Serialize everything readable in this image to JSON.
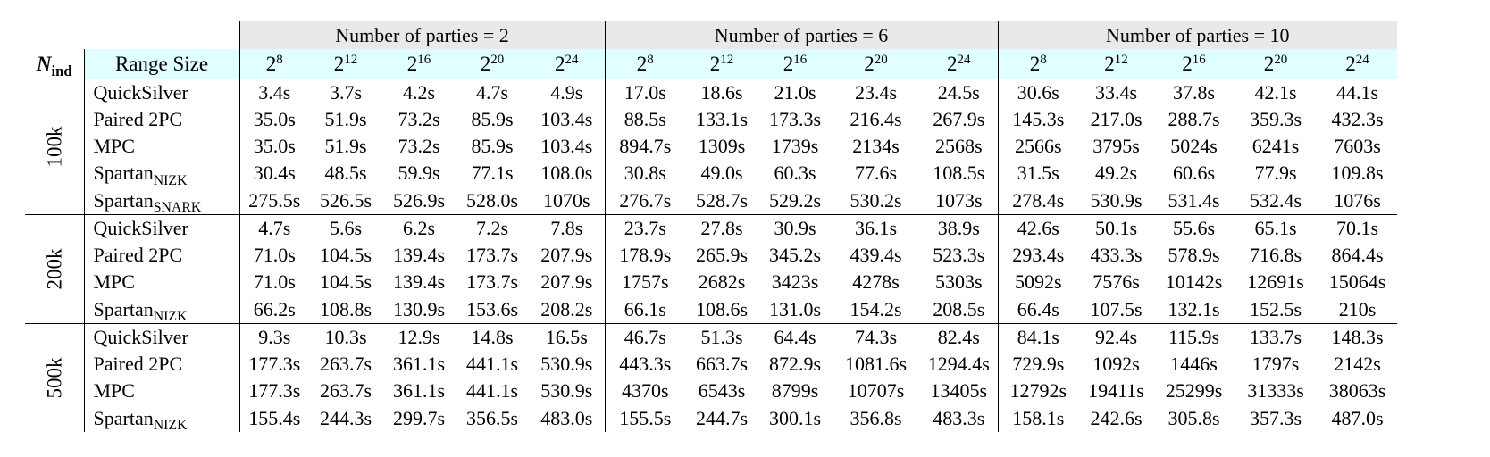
{
  "header": {
    "nind_symbol": "N",
    "nind_subscript": "ind",
    "range_label": "Range Size",
    "party_groups": [
      "Number of parties = 2",
      "Number of parties = 6",
      "Number of parties = 10"
    ],
    "range_sizes": [
      {
        "base": "2",
        "exp": "8"
      },
      {
        "base": "2",
        "exp": "12"
      },
      {
        "base": "2",
        "exp": "16"
      },
      {
        "base": "2",
        "exp": "20"
      },
      {
        "base": "2",
        "exp": "24"
      }
    ]
  },
  "groups": [
    {
      "nind": "100k",
      "rows": [
        {
          "name": "QuickSilver",
          "sub": "",
          "bold": true,
          "values": [
            "3.4s",
            "3.7s",
            "4.2s",
            "4.7s",
            "4.9s",
            "17.0s",
            "18.6s",
            "21.0s",
            "23.4s",
            "24.5s",
            "30.6s",
            "33.4s",
            "37.8s",
            "42.1s",
            "44.1s"
          ]
        },
        {
          "name": "Paired 2PC",
          "sub": "",
          "bold": false,
          "values": [
            "35.0s",
            "51.9s",
            "73.2s",
            "85.9s",
            "103.4s",
            "88.5s",
            "133.1s",
            "173.3s",
            "216.4s",
            "267.9s",
            "145.3s",
            "217.0s",
            "288.7s",
            "359.3s",
            "432.3s"
          ]
        },
        {
          "name": "MPC",
          "sub": "",
          "bold": false,
          "values": [
            "35.0s",
            "51.9s",
            "73.2s",
            "85.9s",
            "103.4s",
            "894.7s",
            "1309s",
            "1739s",
            "2134s",
            "2568s",
            "2566s",
            "3795s",
            "5024s",
            "6241s",
            "7603s"
          ]
        },
        {
          "name": "Spartan",
          "sub": "NIZK",
          "bold": false,
          "values": [
            "30.4s",
            "48.5s",
            "59.9s",
            "77.1s",
            "108.0s",
            "30.8s",
            "49.0s",
            "60.3s",
            "77.6s",
            "108.5s",
            "31.5s",
            "49.2s",
            "60.6s",
            "77.9s",
            "109.8s"
          ]
        },
        {
          "name": "Spartan",
          "sub": "SNARK",
          "bold": false,
          "values": [
            "275.5s",
            "526.5s",
            "526.9s",
            "528.0s",
            "1070s",
            "276.7s",
            "528.7s",
            "529.2s",
            "530.2s",
            "1073s",
            "278.4s",
            "530.9s",
            "531.4s",
            "532.4s",
            "1076s"
          ]
        }
      ]
    },
    {
      "nind": "200k",
      "rows": [
        {
          "name": "QuickSilver",
          "sub": "",
          "bold": true,
          "values": [
            "4.7s",
            "5.6s",
            "6.2s",
            "7.2s",
            "7.8s",
            "23.7s",
            "27.8s",
            "30.9s",
            "36.1s",
            "38.9s",
            "42.6s",
            "50.1s",
            "55.6s",
            "65.1s",
            "70.1s"
          ]
        },
        {
          "name": "Paired 2PC",
          "sub": "",
          "bold": false,
          "values": [
            "71.0s",
            "104.5s",
            "139.4s",
            "173.7s",
            "207.9s",
            "178.9s",
            "265.9s",
            "345.2s",
            "439.4s",
            "523.3s",
            "293.4s",
            "433.3s",
            "578.9s",
            "716.8s",
            "864.4s"
          ]
        },
        {
          "name": "MPC",
          "sub": "",
          "bold": false,
          "values": [
            "71.0s",
            "104.5s",
            "139.4s",
            "173.7s",
            "207.9s",
            "1757s",
            "2682s",
            "3423s",
            "4278s",
            "5303s",
            "5092s",
            "7576s",
            "10142s",
            "12691s",
            "15064s"
          ]
        },
        {
          "name": "Spartan",
          "sub": "NIZK",
          "bold": false,
          "values": [
            "66.2s",
            "108.8s",
            "130.9s",
            "153.6s",
            "208.2s",
            "66.1s",
            "108.6s",
            "131.0s",
            "154.2s",
            "208.5s",
            "66.4s",
            "107.5s",
            "132.1s",
            "152.5s",
            "210s"
          ]
        }
      ]
    },
    {
      "nind": "500k",
      "rows": [
        {
          "name": "QuickSilver",
          "sub": "",
          "bold": true,
          "values": [
            "9.3s",
            "10.3s",
            "12.9s",
            "14.8s",
            "16.5s",
            "46.7s",
            "51.3s",
            "64.4s",
            "74.3s",
            "82.4s",
            "84.1s",
            "92.4s",
            "115.9s",
            "133.7s",
            "148.3s"
          ]
        },
        {
          "name": "Paired 2PC",
          "sub": "",
          "bold": false,
          "values": [
            "177.3s",
            "263.7s",
            "361.1s",
            "441.1s",
            "530.9s",
            "443.3s",
            "663.7s",
            "872.9s",
            "1081.6s",
            "1294.4s",
            "729.9s",
            "1092s",
            "1446s",
            "1797s",
            "2142s"
          ]
        },
        {
          "name": "MPC",
          "sub": "",
          "bold": false,
          "values": [
            "177.3s",
            "263.7s",
            "361.1s",
            "441.1s",
            "530.9s",
            "4370s",
            "6543s",
            "8799s",
            "10707s",
            "13405s",
            "12792s",
            "19411s",
            "25299s",
            "31333s",
            "38063s"
          ]
        },
        {
          "name": "Spartan",
          "sub": "NIZK",
          "bold": false,
          "values": [
            "155.4s",
            "244.3s",
            "299.7s",
            "356.5s",
            "483.0s",
            "155.5s",
            "244.7s",
            "300.1s",
            "356.8s",
            "483.3s",
            "158.1s",
            "242.6s",
            "305.8s",
            "357.3s",
            "487.0s"
          ]
        }
      ]
    }
  ]
}
